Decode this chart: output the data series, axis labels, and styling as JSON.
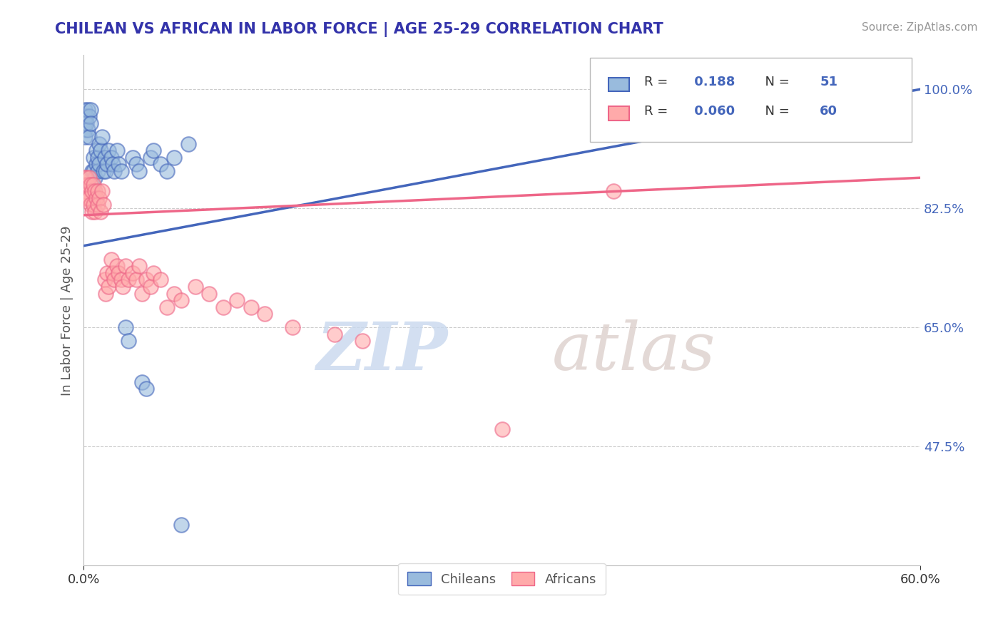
{
  "title": "CHILEAN VS AFRICAN IN LABOR FORCE | AGE 25-29 CORRELATION CHART",
  "source": "Source: ZipAtlas.com",
  "ylabel": "In Labor Force | Age 25-29",
  "xlim": [
    0.0,
    0.6
  ],
  "ylim": [
    0.3,
    1.05
  ],
  "ytick_values": [
    0.475,
    0.65,
    0.825,
    1.0
  ],
  "ytick_labels": [
    "47.5%",
    "65.0%",
    "82.5%",
    "100.0%"
  ],
  "r_chilean": 0.188,
  "n_chilean": 51,
  "r_african": 0.06,
  "n_african": 60,
  "color_chilean": "#99BBDD",
  "color_african": "#FFAAAA",
  "color_trend_chilean": "#4466BB",
  "color_trend_african": "#EE6688",
  "legend_label_chilean": "Chileans",
  "legend_label_african": "Africans",
  "watermark_zip": "ZIP",
  "watermark_atlas": "atlas",
  "chilean_x": [
    0.001,
    0.001,
    0.001,
    0.001,
    0.001,
    0.002,
    0.002,
    0.003,
    0.003,
    0.004,
    0.004,
    0.005,
    0.005,
    0.006,
    0.006,
    0.007,
    0.007,
    0.008,
    0.009,
    0.009,
    0.01,
    0.01,
    0.011,
    0.011,
    0.012,
    0.013,
    0.014,
    0.015,
    0.016,
    0.017,
    0.018,
    0.02,
    0.021,
    0.022,
    0.024,
    0.025,
    0.027,
    0.03,
    0.032,
    0.035,
    0.038,
    0.04,
    0.042,
    0.045,
    0.048,
    0.05,
    0.055,
    0.06,
    0.065,
    0.07,
    0.075
  ],
  "chilean_y": [
    0.97,
    0.96,
    0.95,
    0.94,
    0.93,
    0.96,
    0.95,
    0.97,
    0.94,
    0.96,
    0.93,
    0.97,
    0.95,
    0.88,
    0.86,
    0.9,
    0.88,
    0.87,
    0.91,
    0.89,
    0.9,
    0.88,
    0.92,
    0.89,
    0.91,
    0.93,
    0.88,
    0.9,
    0.88,
    0.89,
    0.91,
    0.9,
    0.89,
    0.88,
    0.91,
    0.89,
    0.88,
    0.65,
    0.63,
    0.9,
    0.89,
    0.88,
    0.57,
    0.56,
    0.9,
    0.91,
    0.89,
    0.88,
    0.9,
    0.36,
    0.92
  ],
  "african_x": [
    0.001,
    0.001,
    0.001,
    0.001,
    0.002,
    0.002,
    0.003,
    0.003,
    0.004,
    0.004,
    0.005,
    0.005,
    0.006,
    0.006,
    0.007,
    0.007,
    0.008,
    0.008,
    0.009,
    0.01,
    0.01,
    0.011,
    0.012,
    0.013,
    0.014,
    0.015,
    0.016,
    0.017,
    0.018,
    0.02,
    0.021,
    0.022,
    0.024,
    0.025,
    0.027,
    0.028,
    0.03,
    0.032,
    0.035,
    0.038,
    0.04,
    0.042,
    0.045,
    0.048,
    0.05,
    0.055,
    0.06,
    0.065,
    0.07,
    0.08,
    0.09,
    0.1,
    0.11,
    0.12,
    0.13,
    0.15,
    0.18,
    0.2,
    0.3,
    0.38
  ],
  "african_y": [
    0.87,
    0.86,
    0.85,
    0.84,
    0.87,
    0.85,
    0.86,
    0.84,
    0.87,
    0.84,
    0.86,
    0.83,
    0.85,
    0.82,
    0.86,
    0.83,
    0.85,
    0.82,
    0.84,
    0.85,
    0.83,
    0.84,
    0.82,
    0.85,
    0.83,
    0.72,
    0.7,
    0.73,
    0.71,
    0.75,
    0.73,
    0.72,
    0.74,
    0.73,
    0.72,
    0.71,
    0.74,
    0.72,
    0.73,
    0.72,
    0.74,
    0.7,
    0.72,
    0.71,
    0.73,
    0.72,
    0.68,
    0.7,
    0.69,
    0.71,
    0.7,
    0.68,
    0.69,
    0.68,
    0.67,
    0.65,
    0.64,
    0.63,
    0.5,
    0.85
  ]
}
